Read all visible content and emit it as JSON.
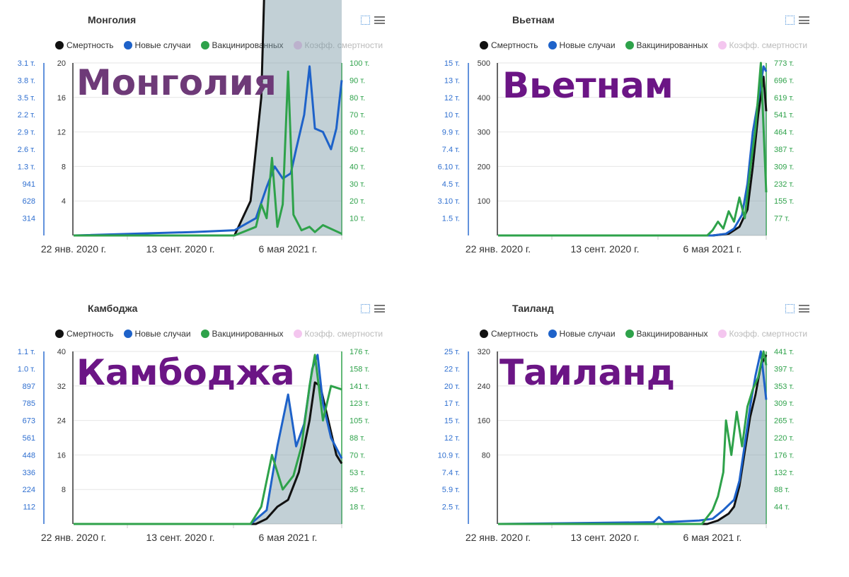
{
  "legend": {
    "deaths": "Смертность",
    "cases": "Новые случаи",
    "vaccinated": "Вакцинированных",
    "cfr": "Коэфф. смертности"
  },
  "colors": {
    "deaths": "#111111",
    "cases": "#1e62c9",
    "vaccinated": "#2ea24a",
    "cfr": "#f4c6ef",
    "overlay_mongolia": "#6e3a78",
    "overlay_other": "#6b1585"
  },
  "x_ticks": [
    "22 янв. 2020 г.",
    "13 сент. 2020 г.",
    "6 мая 2021 г."
  ],
  "chart_data": [
    {
      "type": "line",
      "title": "Монголия",
      "overlay": "Монголия",
      "x_range": [
        "2020-01-22",
        "2021-09-10"
      ],
      "y_deaths_ticks": [
        "20",
        "16",
        "12",
        "8",
        "4"
      ],
      "y_deaths_range": [
        0,
        20
      ],
      "y_cases_ticks": [
        "3.1 т.",
        "3.8 т.",
        "3.5 т.",
        "2.2 т.",
        "2.9 т.",
        "2.6 т.",
        "1.3 т.",
        "941",
        "628",
        "314"
      ],
      "y_vacc_ticks": [
        "100 т.",
        "90 т.",
        "80 т.",
        "70 т.",
        "60 т.",
        "50 т.",
        "40 т.",
        "30 т.",
        "20 т.",
        "10 т."
      ],
      "series": [
        {
          "name": "Смертность",
          "axis": "left",
          "range": [
            0,
            20
          ],
          "points": [
            [
              0,
              0
            ],
            [
              0.6,
              0
            ],
            [
              0.66,
              0.2
            ],
            [
              0.7,
              0.8
            ],
            [
              0.74,
              3
            ],
            [
              0.78,
              6
            ],
            [
              0.8,
              3.5
            ],
            [
              0.83,
              2.5
            ],
            [
              0.86,
              8
            ],
            [
              0.89,
              11
            ],
            [
              0.92,
              13.5
            ],
            [
              0.94,
              8
            ],
            [
              0.96,
              6
            ],
            [
              0.98,
              4
            ],
            [
              1,
              5.5
            ]
          ]
        },
        {
          "name": "Новые случаи",
          "axis": "right",
          "range": [
            0,
            3140
          ],
          "points": [
            [
              0,
              0
            ],
            [
              0.45,
              0.02
            ],
            [
              0.6,
              0.03
            ],
            [
              0.68,
              0.1
            ],
            [
              0.72,
              0.28
            ],
            [
              0.75,
              0.4
            ],
            [
              0.78,
              0.33
            ],
            [
              0.81,
              0.36
            ],
            [
              0.83,
              0.5
            ],
            [
              0.86,
              0.7
            ],
            [
              0.88,
              0.98
            ],
            [
              0.9,
              0.62
            ],
            [
              0.93,
              0.6
            ],
            [
              0.96,
              0.5
            ],
            [
              0.98,
              0.62
            ],
            [
              1,
              0.9
            ]
          ]
        },
        {
          "name": "Вакцинированных",
          "axis": "right",
          "range": [
            0,
            100000
          ],
          "points": [
            [
              0,
              0
            ],
            [
              0.6,
              0
            ],
            [
              0.68,
              0.05
            ],
            [
              0.7,
              0.18
            ],
            [
              0.72,
              0.1
            ],
            [
              0.74,
              0.45
            ],
            [
              0.76,
              0.05
            ],
            [
              0.78,
              0.18
            ],
            [
              0.8,
              0.95
            ],
            [
              0.82,
              0.12
            ],
            [
              0.85,
              0.03
            ],
            [
              0.88,
              0.05
            ],
            [
              0.9,
              0.02
            ],
            [
              0.93,
              0.06
            ],
            [
              1,
              0.01
            ]
          ]
        }
      ],
      "fill_series": "Смертность"
    },
    {
      "type": "line",
      "title": "Вьетнам",
      "overlay": "Вьетнам",
      "x_range": [
        "2020-01-22",
        "2021-09-10"
      ],
      "y_deaths_ticks": [
        "500",
        "400",
        "300",
        "200",
        "100"
      ],
      "y_deaths_range": [
        0,
        500
      ],
      "y_cases_ticks": [
        "15 т.",
        "13 т.",
        "12 т.",
        "10 т.",
        "9.9 т.",
        "7.4 т.",
        "6.10 т.",
        "4.5 т.",
        "3.10 т.",
        "1.5 т."
      ],
      "y_vacc_ticks": [
        "773 т.",
        "696 т.",
        "619 т.",
        "541 т.",
        "464 т.",
        "387 т.",
        "309 т.",
        "232 т.",
        "155 т.",
        "77 т."
      ],
      "series": [
        {
          "name": "Смертность",
          "axis": "left",
          "range": [
            0,
            500
          ],
          "points": [
            [
              0,
              0
            ],
            [
              0.8,
              0
            ],
            [
              0.86,
              0.01
            ],
            [
              0.9,
              0.05
            ],
            [
              0.93,
              0.15
            ],
            [
              0.95,
              0.4
            ],
            [
              0.97,
              0.7
            ],
            [
              0.99,
              0.92
            ],
            [
              1,
              0.72
            ]
          ]
        },
        {
          "name": "Новые случаи",
          "axis": "right",
          "range": [
            0,
            15500
          ],
          "points": [
            [
              0,
              0
            ],
            [
              0.8,
              0
            ],
            [
              0.85,
              0.01
            ],
            [
              0.88,
              0.04
            ],
            [
              0.91,
              0.12
            ],
            [
              0.93,
              0.3
            ],
            [
              0.95,
              0.6
            ],
            [
              0.97,
              0.78
            ],
            [
              0.99,
              0.98
            ],
            [
              1,
              0.95
            ]
          ]
        },
        {
          "name": "Вакцинированных",
          "axis": "right",
          "range": [
            0,
            773000
          ],
          "points": [
            [
              0,
              0
            ],
            [
              0.78,
              0
            ],
            [
              0.8,
              0.03
            ],
            [
              0.82,
              0.08
            ],
            [
              0.84,
              0.04
            ],
            [
              0.86,
              0.14
            ],
            [
              0.88,
              0.08
            ],
            [
              0.9,
              0.22
            ],
            [
              0.92,
              0.1
            ],
            [
              0.94,
              0.38
            ],
            [
              0.96,
              0.62
            ],
            [
              0.98,
              1
            ],
            [
              1,
              0.25
            ]
          ]
        }
      ],
      "fill_series": "Смертность"
    },
    {
      "type": "line",
      "title": "Камбоджа",
      "overlay": "Камбоджа",
      "x_range": [
        "2020-01-22",
        "2021-09-10"
      ],
      "y_deaths_ticks": [
        "40",
        "32",
        "24",
        "16",
        "8"
      ],
      "y_deaths_range": [
        0,
        40
      ],
      "y_cases_ticks": [
        "1.1 т.",
        "1.0 т.",
        "897",
        "785",
        "673",
        "561",
        "448",
        "336",
        "224",
        "112"
      ],
      "y_vacc_ticks": [
        "176 т.",
        "158 т.",
        "141 т.",
        "123 т.",
        "105 т.",
        "88 т.",
        "70 т.",
        "53 т.",
        "35 т.",
        "18 т."
      ],
      "series": [
        {
          "name": "Смертность",
          "axis": "left",
          "range": [
            0,
            40
          ],
          "points": [
            [
              0,
              0
            ],
            [
              0.68,
              0
            ],
            [
              0.72,
              0.03
            ],
            [
              0.76,
              0.1
            ],
            [
              0.8,
              0.14
            ],
            [
              0.84,
              0.3
            ],
            [
              0.88,
              0.6
            ],
            [
              0.9,
              0.82
            ],
            [
              0.92,
              0.8
            ],
            [
              0.95,
              0.6
            ],
            [
              0.98,
              0.4
            ],
            [
              1,
              0.35
            ]
          ]
        },
        {
          "name": "Новые случаи",
          "axis": "right",
          "range": [
            0,
            1120
          ],
          "points": [
            [
              0,
              0
            ],
            [
              0.66,
              0
            ],
            [
              0.72,
              0.08
            ],
            [
              0.76,
              0.45
            ],
            [
              0.8,
              0.75
            ],
            [
              0.83,
              0.45
            ],
            [
              0.86,
              0.58
            ],
            [
              0.89,
              0.9
            ],
            [
              0.91,
              0.98
            ],
            [
              0.93,
              0.7
            ],
            [
              0.96,
              0.5
            ],
            [
              1,
              0.38
            ]
          ]
        },
        {
          "name": "Вакцинированных",
          "axis": "right",
          "range": [
            0,
            176000
          ],
          "points": [
            [
              0,
              0
            ],
            [
              0.66,
              0
            ],
            [
              0.7,
              0.1
            ],
            [
              0.74,
              0.4
            ],
            [
              0.78,
              0.2
            ],
            [
              0.82,
              0.28
            ],
            [
              0.85,
              0.45
            ],
            [
              0.88,
              0.8
            ],
            [
              0.9,
              0.98
            ],
            [
              0.93,
              0.6
            ],
            [
              0.96,
              0.8
            ],
            [
              1,
              0.78
            ]
          ]
        }
      ],
      "fill_series": "Новые случаи"
    },
    {
      "type": "line",
      "title": "Таиланд",
      "overlay": "Таиланд",
      "x_range": [
        "2020-01-22",
        "2021-09-10"
      ],
      "y_deaths_ticks": [
        "320",
        "240",
        "160",
        "80"
      ],
      "y_deaths_range": [
        0,
        320
      ],
      "y_cases_ticks": [
        "25 т.",
        "22 т.",
        "20 т.",
        "17 т.",
        "15 т.",
        "12 т.",
        "10.9 т.",
        "7.4 т.",
        "5.9 т.",
        "2.5 т."
      ],
      "y_vacc_ticks": [
        "441 т.",
        "397 т.",
        "353 т.",
        "309 т.",
        "265 т.",
        "220 т.",
        "176 т.",
        "132 т.",
        "88 т.",
        "44 т."
      ],
      "series": [
        {
          "name": "Смертность",
          "axis": "left",
          "range": [
            0,
            320
          ],
          "points": [
            [
              0,
              0
            ],
            [
              0.78,
              0
            ],
            [
              0.82,
              0.02
            ],
            [
              0.86,
              0.06
            ],
            [
              0.88,
              0.1
            ],
            [
              0.9,
              0.22
            ],
            [
              0.92,
              0.42
            ],
            [
              0.94,
              0.62
            ],
            [
              0.96,
              0.75
            ],
            [
              0.98,
              0.92
            ],
            [
              1,
              0.98
            ]
          ]
        },
        {
          "name": "Новые случаи",
          "axis": "right",
          "range": [
            0,
            25000
          ],
          "points": [
            [
              0,
              0
            ],
            [
              0.58,
              0.01
            ],
            [
              0.6,
              0.04
            ],
            [
              0.62,
              0.01
            ],
            [
              0.75,
              0.02
            ],
            [
              0.8,
              0.03
            ],
            [
              0.84,
              0.08
            ],
            [
              0.88,
              0.14
            ],
            [
              0.9,
              0.25
            ],
            [
              0.92,
              0.46
            ],
            [
              0.94,
              0.68
            ],
            [
              0.96,
              0.86
            ],
            [
              0.98,
              1
            ],
            [
              1,
              0.72
            ]
          ]
        },
        {
          "name": "Вакцинированных",
          "axis": "right",
          "range": [
            0,
            441000
          ],
          "points": [
            [
              0,
              0
            ],
            [
              0.76,
              0
            ],
            [
              0.8,
              0.08
            ],
            [
              0.82,
              0.16
            ],
            [
              0.84,
              0.3
            ],
            [
              0.85,
              0.6
            ],
            [
              0.87,
              0.4
            ],
            [
              0.89,
              0.65
            ],
            [
              0.91,
              0.45
            ],
            [
              0.93,
              0.68
            ],
            [
              0.95,
              0.78
            ],
            [
              0.97,
              0.85
            ],
            [
              0.99,
              1
            ],
            [
              1,
              0.92
            ]
          ]
        }
      ],
      "fill_series": "Смертность"
    }
  ]
}
